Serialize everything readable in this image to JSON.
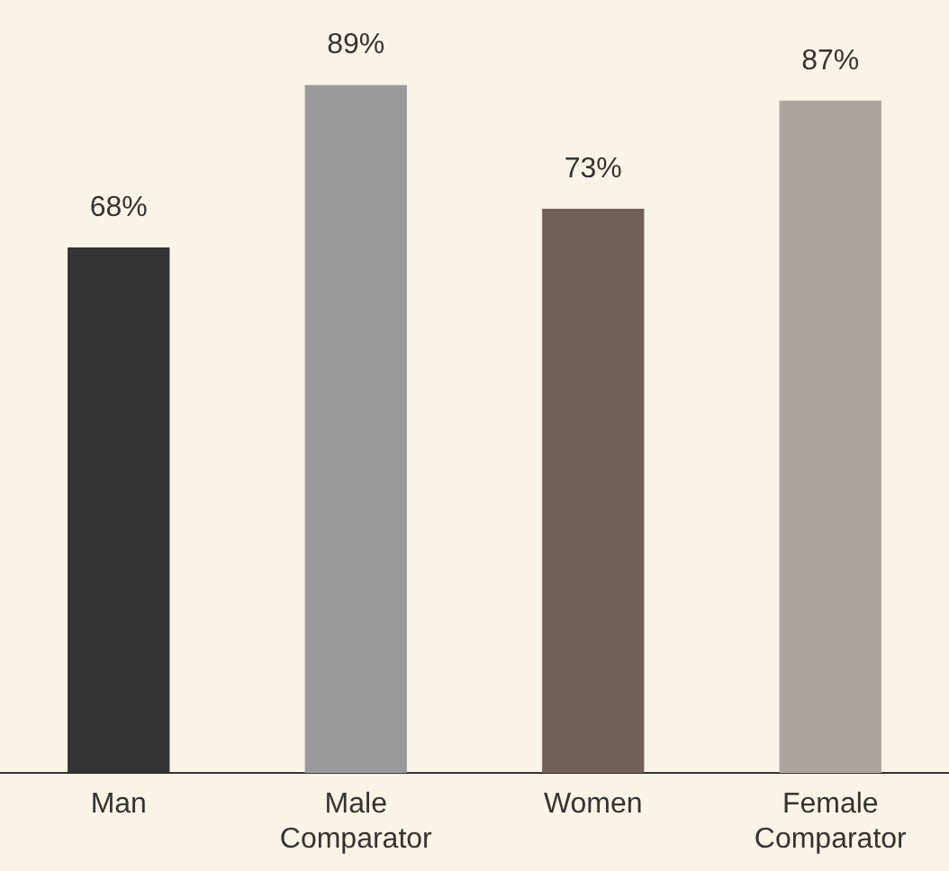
{
  "chart_data": {
    "type": "bar",
    "categories": [
      "Man",
      "Male Comparator",
      "Women",
      "Female Comparator"
    ],
    "values": [
      68,
      89,
      73,
      87
    ],
    "colors": [
      "#333333",
      "#9a9a9c",
      "#706158",
      "#ada49e"
    ],
    "value_labels": [
      "68%",
      "89%",
      "73%",
      "87%"
    ],
    "ylim": [
      0,
      100
    ],
    "tick_labels": "x",
    "grid": false,
    "legend": false
  }
}
